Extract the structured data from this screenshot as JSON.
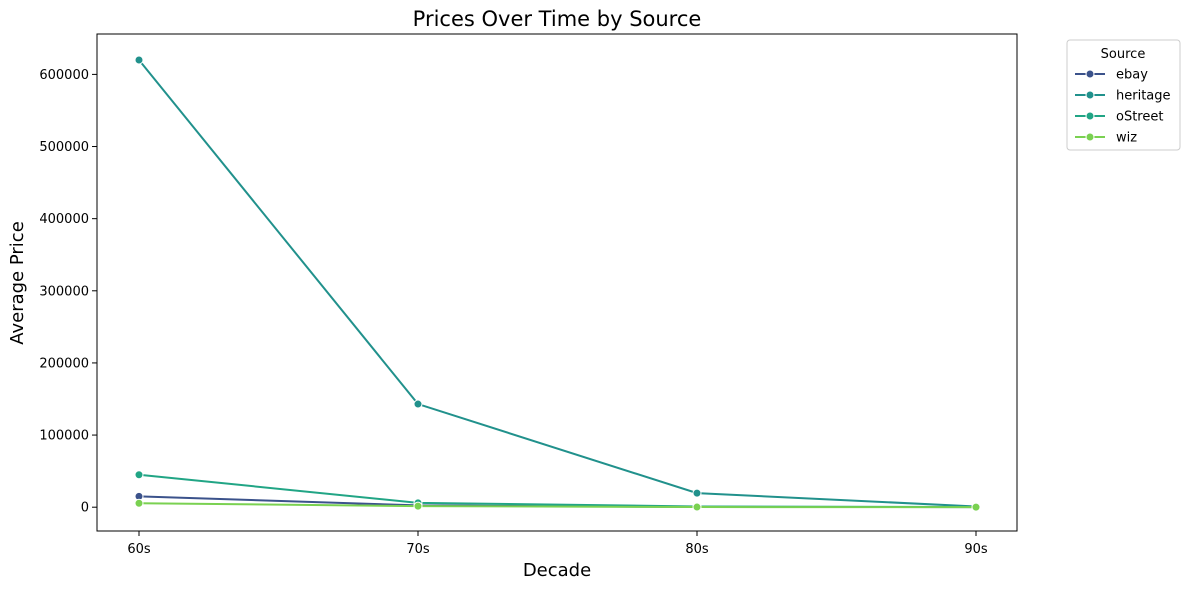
{
  "chart_data": {
    "type": "line",
    "title": "Prices Over Time by Source",
    "xlabel": "Decade",
    "ylabel": "Average Price",
    "categories": [
      "60s",
      "70s",
      "80s",
      "90s"
    ],
    "yticks": [
      0,
      100000,
      200000,
      300000,
      400000,
      500000,
      600000
    ],
    "ylim": [
      -33000,
      656000
    ],
    "grid": false,
    "legend": {
      "title": "Source",
      "placement": "outside-top-right"
    },
    "series": [
      {
        "name": "ebay",
        "color": "#3b528b",
        "values": [
          15000,
          2500,
          400,
          150
        ]
      },
      {
        "name": "heritage",
        "color": "#21918c",
        "values": [
          620000,
          143000,
          19500,
          1000
        ]
      },
      {
        "name": "oStreet",
        "color": "#21a585",
        "values": [
          45000,
          6000,
          1000,
          200
        ]
      },
      {
        "name": "wiz",
        "color": "#7ad151",
        "values": [
          5500,
          1500,
          200,
          50
        ]
      }
    ]
  }
}
